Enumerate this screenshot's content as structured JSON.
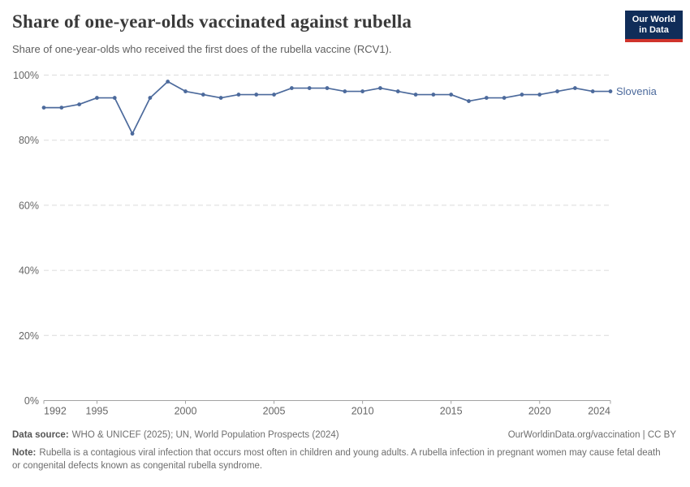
{
  "header": {
    "title": "Share of one-year-olds vaccinated against rubella",
    "subtitle": "Share of one-year-olds who received the first does of the rubella vaccine (RCV1).",
    "logo": {
      "line1": "Our World",
      "line2": "in Data",
      "bg_color": "#102d59",
      "stripe_color": "#d0342c"
    }
  },
  "chart_data": {
    "type": "line",
    "title": "Share of one-year-olds vaccinated against rubella",
    "xlabel": "",
    "ylabel": "",
    "xlim": [
      1992,
      2024
    ],
    "ylim": [
      0,
      100
    ],
    "x_ticks": [
      1992,
      1995,
      2000,
      2005,
      2010,
      2015,
      2020,
      2024
    ],
    "y_ticks": [
      0,
      20,
      40,
      60,
      80,
      100
    ],
    "y_tick_suffix": "%",
    "grid": "horizontal-dashed",
    "legend": "end-of-line-label",
    "x": [
      1992,
      1993,
      1994,
      1995,
      1996,
      1997,
      1998,
      1999,
      2000,
      2001,
      2002,
      2003,
      2004,
      2005,
      2006,
      2007,
      2008,
      2009,
      2010,
      2011,
      2012,
      2013,
      2014,
      2015,
      2016,
      2017,
      2018,
      2019,
      2020,
      2021,
      2022,
      2023,
      2024
    ],
    "series": [
      {
        "name": "Slovenia",
        "color": "#4c6a9c",
        "values": [
          90,
          90,
          91,
          93,
          93,
          82,
          93,
          98,
          95,
          94,
          93,
          94,
          94,
          94,
          96,
          96,
          96,
          95,
          95,
          96,
          95,
          94,
          94,
          94,
          92,
          93,
          93,
          94,
          94,
          95,
          96,
          95,
          95
        ]
      }
    ]
  },
  "axis_colors": {
    "grid": "#dcdcdc",
    "axis_line": "#a3a3a3",
    "tick_label": "#666666"
  },
  "footer": {
    "data_source_label": "Data source:",
    "data_source_text": "WHO & UNICEF (2025); UN, World Population Prospects (2024)",
    "rights_text": "OurWorldinData.org/vaccination | CC BY",
    "note_label": "Note:",
    "note_text": "Rubella is a contagious viral infection that occurs most often in children and young adults. A rubella infection in pregnant women may cause fetal death or congenital defects known as congenital rubella syndrome."
  }
}
